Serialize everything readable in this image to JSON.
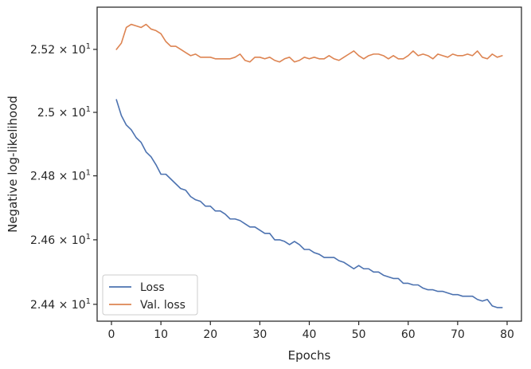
{
  "chart_data": {
    "type": "line",
    "xlabel": "Epochs",
    "ylabel": "Negative log-likelihood",
    "xlim": [
      -2.9,
      82.9
    ],
    "ylim": [
      24.348,
      25.335
    ],
    "yscale": "log",
    "xticks": [
      0,
      10,
      20,
      30,
      40,
      50,
      60,
      70,
      80
    ],
    "xtick_labels": [
      "0",
      "10",
      "20",
      "30",
      "40",
      "50",
      "60",
      "70",
      "80"
    ],
    "yticks": [
      24.4,
      24.6,
      24.8,
      25.0,
      25.2
    ],
    "ytick_labels": [
      {
        "mant": "2.44",
        "exp": "1"
      },
      {
        "mant": "2.46",
        "exp": "1"
      },
      {
        "mant": "2.48",
        "exp": "1"
      },
      {
        "mant": "2.5",
        "exp": "1"
      },
      {
        "mant": "2.52",
        "exp": "1"
      }
    ],
    "legend_position": "lower-left",
    "x": [
      1,
      2,
      3,
      4,
      5,
      6,
      7,
      8,
      9,
      10,
      11,
      12,
      13,
      14,
      15,
      16,
      17,
      18,
      19,
      20,
      21,
      22,
      23,
      24,
      25,
      26,
      27,
      28,
      29,
      30,
      31,
      32,
      33,
      34,
      35,
      36,
      37,
      38,
      39,
      40,
      41,
      42,
      43,
      44,
      45,
      46,
      47,
      48,
      49,
      50,
      51,
      52,
      53,
      54,
      55,
      56,
      57,
      58,
      59,
      60,
      61,
      62,
      63,
      64,
      65,
      66,
      67,
      68,
      69,
      70,
      71,
      72,
      73,
      74,
      75,
      76,
      77,
      78,
      79
    ],
    "series": [
      {
        "name": "Loss",
        "color": "#4c72b0",
        "values": [
          25.04,
          24.99,
          24.96,
          24.945,
          24.92,
          24.905,
          24.875,
          24.86,
          24.835,
          24.805,
          24.805,
          24.79,
          24.775,
          24.76,
          24.755,
          24.735,
          24.725,
          24.72,
          24.705,
          24.705,
          24.69,
          24.69,
          24.68,
          24.665,
          24.665,
          24.66,
          24.65,
          24.64,
          24.64,
          24.63,
          24.62,
          24.62,
          24.6,
          24.6,
          24.595,
          24.585,
          24.595,
          24.585,
          24.57,
          24.57,
          24.56,
          24.555,
          24.545,
          24.545,
          24.545,
          24.535,
          24.53,
          24.52,
          24.51,
          24.52,
          24.51,
          24.51,
          24.5,
          24.5,
          24.49,
          24.485,
          24.48,
          24.48,
          24.465,
          24.465,
          24.46,
          24.46,
          24.45,
          24.445,
          24.445,
          24.44,
          24.44,
          24.435,
          24.43,
          24.43,
          24.425,
          24.425,
          24.425,
          24.415,
          24.41,
          24.415,
          24.395,
          24.39,
          24.39
        ]
      },
      {
        "name": "Val. loss",
        "color": "#dd8452",
        "values": [
          25.2,
          25.22,
          25.27,
          25.28,
          25.275,
          25.27,
          25.28,
          25.265,
          25.26,
          25.25,
          25.225,
          25.21,
          25.21,
          25.2,
          25.19,
          25.18,
          25.185,
          25.175,
          25.175,
          25.175,
          25.17,
          25.17,
          25.17,
          25.17,
          25.175,
          25.185,
          25.165,
          25.16,
          25.175,
          25.175,
          25.17,
          25.175,
          25.165,
          25.16,
          25.17,
          25.175,
          25.16,
          25.165,
          25.175,
          25.17,
          25.175,
          25.17,
          25.17,
          25.18,
          25.17,
          25.165,
          25.175,
          25.185,
          25.195,
          25.18,
          25.17,
          25.18,
          25.185,
          25.185,
          25.18,
          25.17,
          25.18,
          25.17,
          25.17,
          25.18,
          25.195,
          25.18,
          25.185,
          25.18,
          25.17,
          25.185,
          25.18,
          25.175,
          25.185,
          25.18,
          25.18,
          25.185,
          25.18,
          25.195,
          25.175,
          25.17,
          25.185,
          25.175,
          25.18
        ]
      }
    ]
  }
}
